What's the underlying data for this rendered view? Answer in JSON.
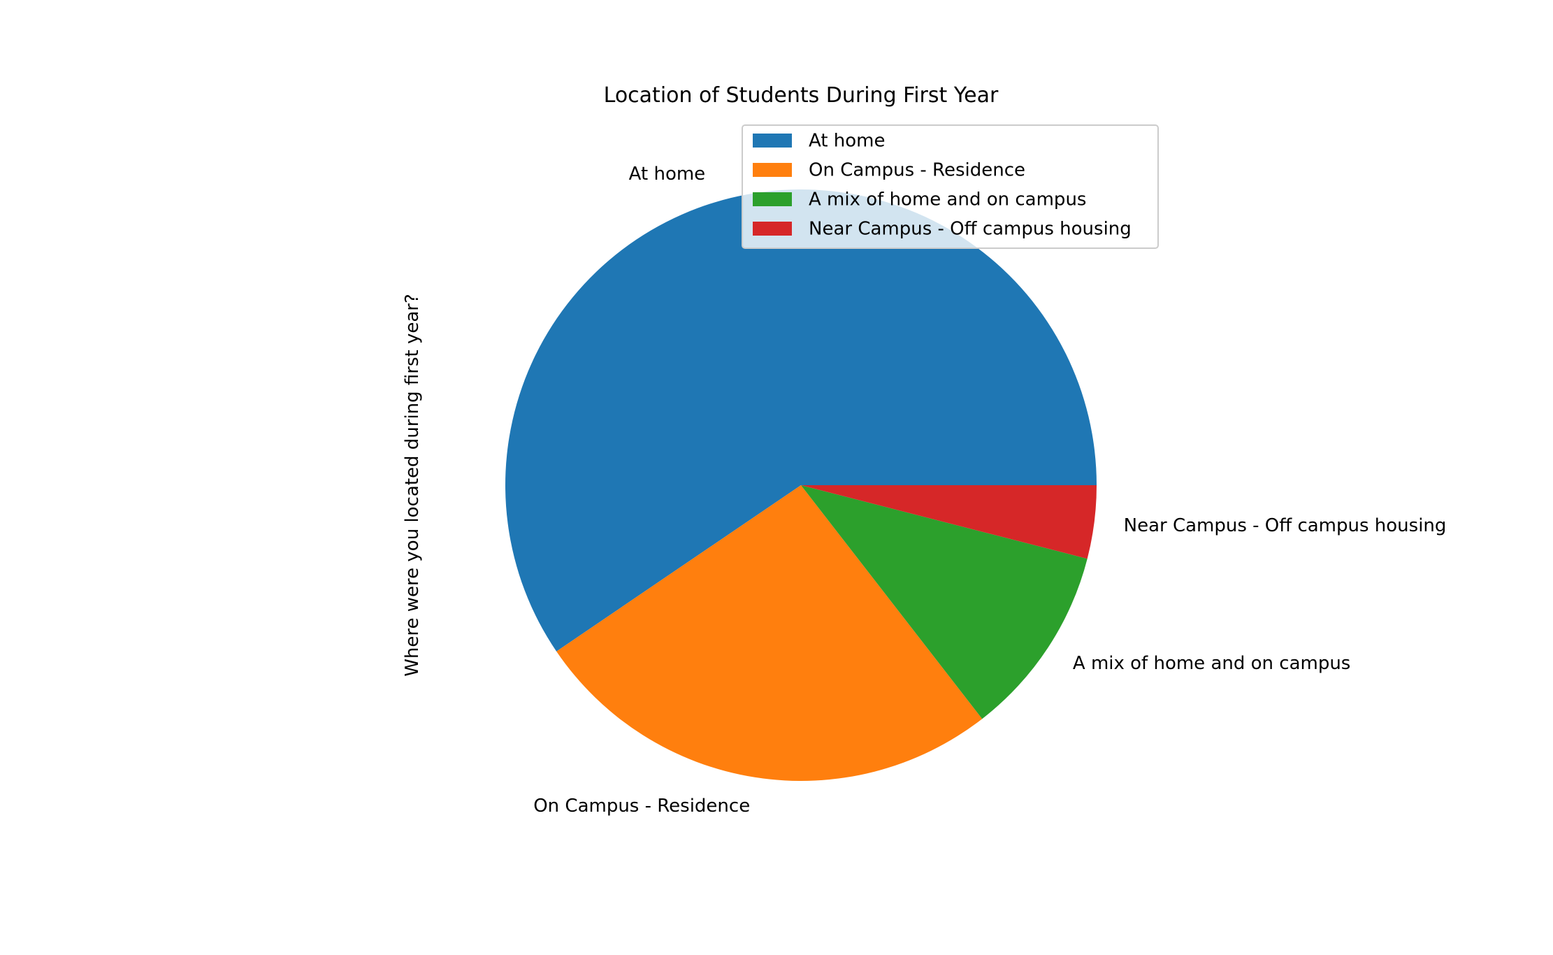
{
  "chart_data": {
    "type": "pie",
    "title": "Location of Students During First Year",
    "ylabel": "Where were you located during first year?",
    "slices": [
      {
        "label": "At home",
        "value": 59.5,
        "color": "#1f77b4"
      },
      {
        "label": "On Campus - Residence",
        "value": 26.0,
        "color": "#ff7f0e"
      },
      {
        "label": "A mix of home and on campus",
        "value": 10.5,
        "color": "#2ca02c"
      },
      {
        "label": "Near Campus - Off campus housing",
        "value": 4.0,
        "color": "#d62728"
      }
    ],
    "start_angle_deg": 0,
    "direction": "counterclockwise",
    "legend": {
      "placement": "top-right",
      "entries": [
        "At home",
        "On Campus - Residence",
        "A mix of home and on campus",
        "Near Campus - Off campus housing"
      ]
    }
  }
}
